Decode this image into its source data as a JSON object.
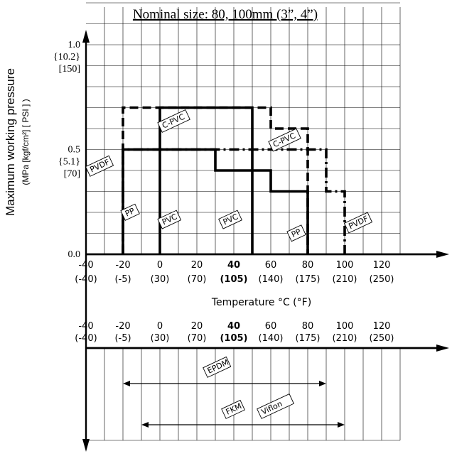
{
  "chart_data": [
    {
      "type": "line",
      "title": "Nominal size: 80, 100mm (3”, 4”)",
      "ylabel": "Maximum working pressure",
      "ylabel_units": "(MPa [kgf/cm²] [ PSI ] )",
      "xlabel": "Temperature °C (°F)",
      "xlim": [
        -40,
        130
      ],
      "ylim": [
        0,
        1.2
      ],
      "grid": true,
      "x_ticks": [
        {
          "c": "-40",
          "f": "(-40)"
        },
        {
          "c": "-20",
          "f": "(-5)"
        },
        {
          "c": "0",
          "f": "(30)"
        },
        {
          "c": "20",
          "f": "(70)"
        },
        {
          "c": "40",
          "f": "(105)"
        },
        {
          "c": "60",
          "f": "(140)"
        },
        {
          "c": "80",
          "f": "(175)"
        },
        {
          "c": "100",
          "f": "(210)"
        },
        {
          "c": "120",
          "f": "(250)"
        }
      ],
      "y_ticks": [
        {
          "value": 1.0,
          "lines": [
            "1.0",
            "{10.2}",
            "[150]"
          ]
        },
        {
          "value": 0.5,
          "lines": [
            "0.5",
            "{5.1}",
            "[70]"
          ]
        },
        {
          "value": 0.0,
          "lines": [
            "0.0"
          ]
        }
      ],
      "series": [
        {
          "name": "PVC",
          "style": "solid",
          "x": [
            0,
            0,
            50,
            50
          ],
          "y": [
            0,
            0.7,
            0.7,
            0
          ]
        },
        {
          "name": "PP",
          "style": "solid",
          "x": [
            -20,
            -20,
            30,
            30,
            60,
            60,
            80,
            80
          ],
          "y": [
            0,
            0.5,
            0.5,
            0.4,
            0.4,
            0.3,
            0.3,
            0
          ]
        },
        {
          "name": "C-PVC",
          "style": "dashed",
          "x": [
            -20,
            -20,
            60,
            60,
            80,
            80
          ],
          "y": [
            0,
            0.7,
            0.7,
            0.6,
            0.6,
            0
          ]
        },
        {
          "name": "PVDF",
          "style": "dashdot",
          "x": [
            -20,
            -20,
            90,
            90,
            100,
            100
          ],
          "y": [
            0,
            0.5,
            0.5,
            0.3,
            0.3,
            0
          ]
        }
      ],
      "labels": [
        {
          "text": "C-PVC",
          "x": 2,
          "y": 0.6
        },
        {
          "text": "C-PVC",
          "x": 62,
          "y": 0.51
        },
        {
          "text": "PVDF",
          "x": -37,
          "y": 0.39
        },
        {
          "text": "PP",
          "x": -18,
          "y": 0.18
        },
        {
          "text": "PVC",
          "x": 2,
          "y": 0.14
        },
        {
          "text": "PVC",
          "x": 35,
          "y": 0.14
        },
        {
          "text": "PP",
          "x": 72,
          "y": 0.08
        },
        {
          "text": "PVDF",
          "x": 103,
          "y": 0.12
        }
      ]
    },
    {
      "type": "range",
      "xlim": [
        -40,
        130
      ],
      "x_ticks": [
        {
          "c": "-40",
          "f": "(-40)"
        },
        {
          "c": "-20",
          "f": "(-5)"
        },
        {
          "c": "0",
          "f": "(30)"
        },
        {
          "c": "20",
          "f": "(70)"
        },
        {
          "c": "40",
          "f": "(105)"
        },
        {
          "c": "60",
          "f": "(140)"
        },
        {
          "c": "80",
          "f": "(175)"
        },
        {
          "c": "100",
          "f": "(210)"
        },
        {
          "c": "120",
          "f": "(250)"
        }
      ],
      "ranges": [
        {
          "labels": [
            "EPDM"
          ],
          "from": -20,
          "to": 90
        },
        {
          "labels": [
            "FKM",
            "Viflon"
          ],
          "from": -10,
          "to": 100
        }
      ]
    }
  ]
}
